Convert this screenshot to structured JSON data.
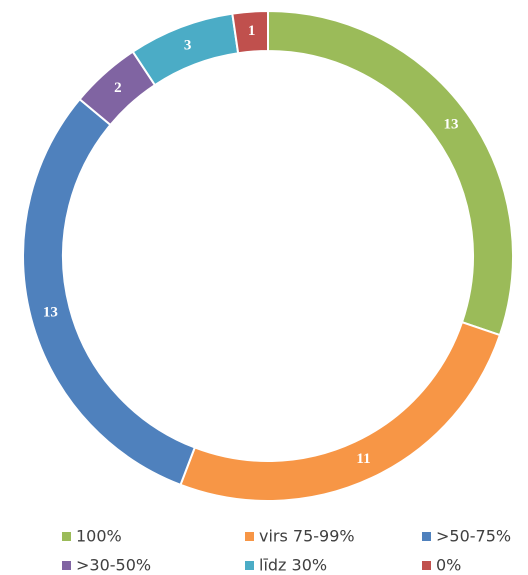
{
  "chart_data": {
    "type": "donut",
    "categories": [
      "100%",
      "virs 75-99%",
      ">50-75%",
      ">30-50%",
      "līdz 30%",
      "0%"
    ],
    "values": [
      13,
      11,
      13,
      2,
      3,
      1
    ],
    "colors": [
      "#9bbb59",
      "#f79646",
      "#4f81bd",
      "#8064a2",
      "#4bacc6",
      "#c0504d"
    ]
  }
}
